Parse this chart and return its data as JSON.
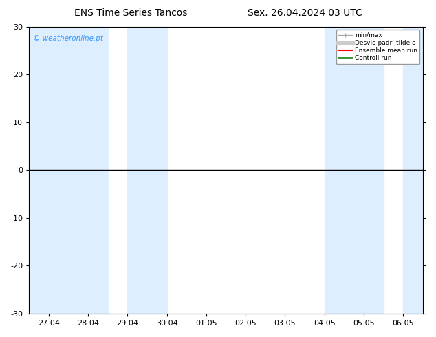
{
  "title_left": "ENS Time Series Tancos",
  "title_right": "Sex. 26.04.2024 03 UTC",
  "watermark": "© weatheronline.pt",
  "watermark_color": "#3399ff",
  "ylim": [
    -30,
    30
  ],
  "yticks": [
    -30,
    -20,
    -10,
    0,
    10,
    20,
    30
  ],
  "xtick_labels": [
    "27.04",
    "28.04",
    "29.04",
    "30.04",
    "01.05",
    "02.05",
    "03.05",
    "04.05",
    "05.05",
    "06.05"
  ],
  "background_color": "#ffffff",
  "plot_bg_color": "#ffffff",
  "blue_band_color": "#ddeeff",
  "zero_line_color": "#000000",
  "blue_band_ranges": [
    [
      -0.5,
      1.5
    ],
    [
      2.0,
      3.0
    ],
    [
      7.0,
      8.5
    ],
    [
      9.0,
      9.5
    ]
  ],
  "legend_labels": [
    "min/max",
    "Desvio padr  tilde;o",
    "Ensemble mean run",
    "Controll run"
  ],
  "legend_colors": [
    "#aaaaaa",
    "#cccccc",
    "#ff0000",
    "#228B22"
  ],
  "legend_linewidths": [
    1.0,
    5,
    1.5,
    2.0
  ],
  "font_size": 8,
  "title_font_size": 10
}
